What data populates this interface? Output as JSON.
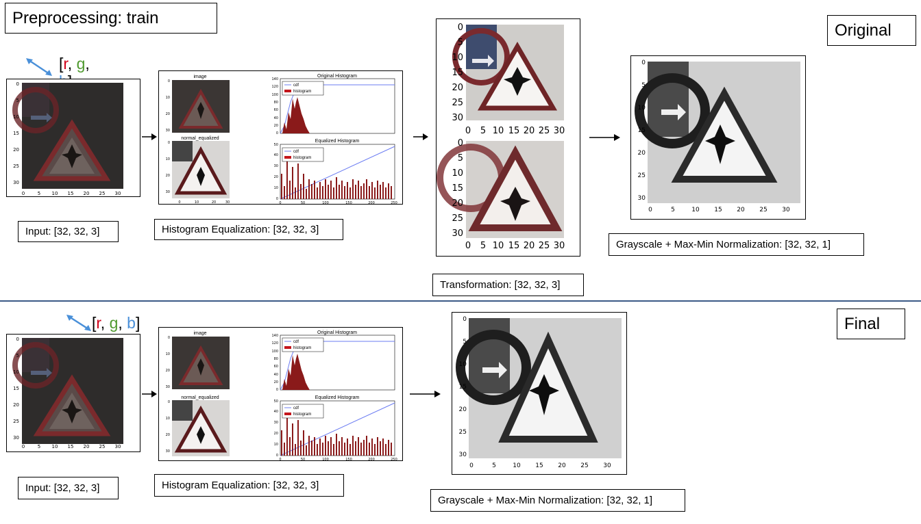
{
  "title": "Preprocessing: train",
  "rgb": {
    "open": "[",
    "r": "r",
    "sep1": ", ",
    "g": "g",
    "sep2": ", ",
    "b": "b",
    "close": "]"
  },
  "sections": {
    "original": {
      "tag": "Original",
      "input_label": "Input: [32, 32, 3]",
      "hist_label": "Histogram Equalization: [32, 32, 3]",
      "transform_label": "Transformation: [32, 32, 3]",
      "gray_label": "Grayscale + Max-Min Normalization: [32, 32, 1]"
    },
    "final": {
      "tag": "Final",
      "input_label": "Input: [32, 32, 3]",
      "hist_label": "Histogram Equalization: [32, 32, 3]",
      "gray_label": "Grayscale + Max-Min Normalization: [32, 32, 1]"
    }
  },
  "plots": {
    "image_title": "image",
    "equalized_title": "normal_equalized",
    "orig_hist_title": "Original Histogram",
    "eq_hist_title": "Equalized Histogram",
    "legend_cdf": "cdf",
    "legend_hist": "histogram",
    "orig_hist_yticks": [
      "0",
      "20",
      "40",
      "60",
      "80",
      "100",
      "120",
      "140"
    ],
    "eq_hist_yticks": [
      "0",
      "10",
      "20",
      "30",
      "40",
      "50"
    ],
    "hist_xticks": [
      "0",
      "50",
      "100",
      "150",
      "200",
      "250"
    ],
    "img_ticks": [
      "0",
      "5",
      "10",
      "15",
      "20",
      "25",
      "30"
    ]
  },
  "colors": {
    "sign_red": "#b0242b",
    "cdf_line": "#6b7cf2",
    "histogram": "#c4161c",
    "divider": "#3b5a86",
    "arrow_blue": "#4a90d9"
  }
}
